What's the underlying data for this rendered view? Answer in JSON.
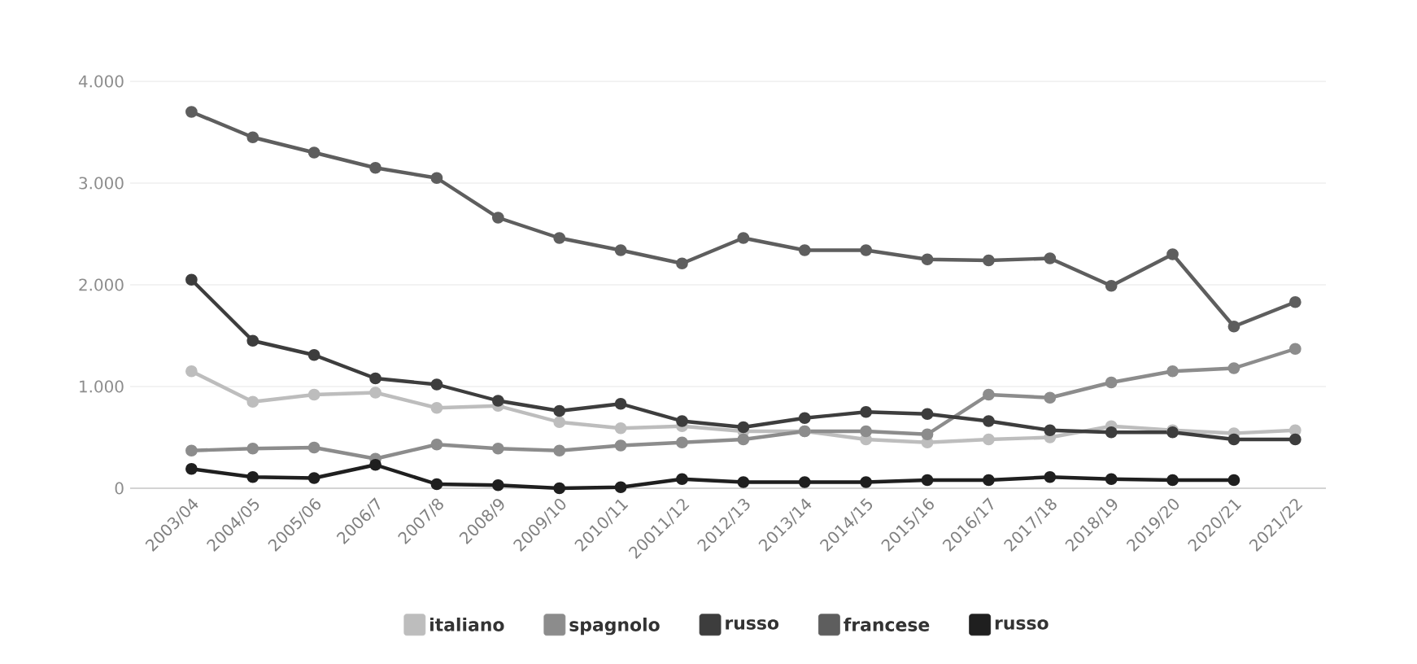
{
  "chart_data": {
    "type": "line",
    "categories": [
      "2003/04",
      "2004/05",
      "2005/06",
      "2006/7",
      "2007/8",
      "2008/9",
      "2009/10",
      "2010/11",
      "20011/12",
      "2012/13",
      "2013/14",
      "2014/15",
      "2015/16",
      "2016/17",
      "2017/18",
      "2018/19",
      "2019/20",
      "2020/21",
      "2021/22"
    ],
    "series": [
      {
        "name": "italiano",
        "color": "#bdbdbd",
        "values": [
          1150,
          850,
          920,
          940,
          790,
          810,
          650,
          590,
          610,
          560,
          560,
          480,
          450,
          480,
          500,
          610,
          570,
          540,
          570
        ]
      },
      {
        "name": "spagnolo",
        "color": "#8c8c8c",
        "values": [
          370,
          390,
          400,
          290,
          430,
          390,
          370,
          420,
          450,
          480,
          560,
          560,
          530,
          920,
          890,
          1040,
          1150,
          1180,
          1370
        ]
      },
      {
        "name": "russo",
        "color": "#3d3d3d",
        "values": [
          2050,
          1450,
          1310,
          1080,
          1020,
          860,
          760,
          830,
          660,
          600,
          690,
          750,
          730,
          660,
          570,
          550,
          550,
          480,
          480
        ]
      },
      {
        "name": "francese",
        "color": "#5e5e5e",
        "values": [
          3700,
          3450,
          3300,
          3150,
          3050,
          2660,
          2460,
          2340,
          2210,
          2460,
          2340,
          2340,
          2250,
          2240,
          2260,
          1990,
          2300,
          1590,
          1830
        ]
      },
      {
        "name": "russo",
        "color": "#1f1f1f",
        "values": [
          190,
          110,
          100,
          230,
          40,
          30,
          0,
          10,
          90,
          60,
          60,
          60,
          80,
          80,
          110,
          90,
          80,
          80,
          null
        ]
      }
    ],
    "ylim": [
      0,
      4000
    ],
    "yticks": [
      0,
      {
        "value": 1000,
        "label": "1.000"
      },
      {
        "value": 2000,
        "label": "2.000"
      },
      {
        "value": 3000,
        "label": "3.000"
      },
      {
        "value": 4000,
        "label": "4.000"
      }
    ],
    "grid": "y",
    "legend": "bottom",
    "marker": "circle",
    "line_style": "solid"
  }
}
